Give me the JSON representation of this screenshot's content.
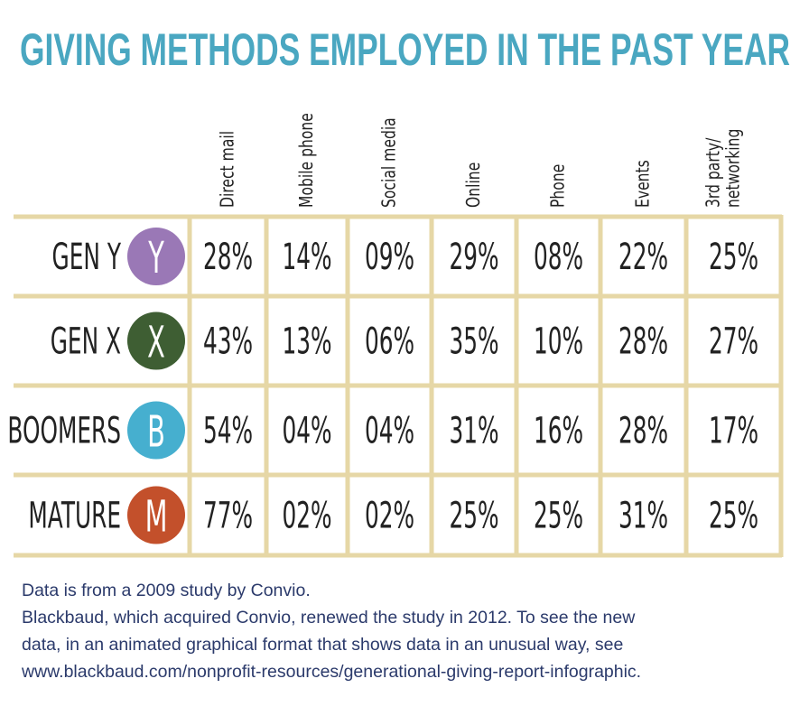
{
  "header": {
    "title": "GIVING METHODS EMPLOYED IN THE PAST YEAR"
  },
  "table": {
    "columns": [
      [
        "Direct  mail"
      ],
      [
        "Mobile phone"
      ],
      [
        "Social media"
      ],
      [
        "Online"
      ],
      [
        "Phone"
      ],
      [
        "Events"
      ],
      [
        "3rd party/",
        "networking"
      ]
    ],
    "rows": [
      {
        "label": "GEN Y",
        "badge": "Y",
        "badge_color": "#9a78b6",
        "cells": [
          "28%",
          "14%",
          "09%",
          "29%",
          "08%",
          "22%",
          "25%"
        ]
      },
      {
        "label": "GEN X",
        "badge": "X",
        "badge_color": "#3e5e33",
        "cells": [
          "43%",
          "13%",
          "06%",
          "35%",
          "10%",
          "28%",
          "27%"
        ]
      },
      {
        "label": "BOOMERS",
        "badge": "B",
        "badge_color": "#46afcf",
        "cells": [
          "54%",
          "04%",
          "04%",
          "31%",
          "16%",
          "28%",
          "17%"
        ]
      },
      {
        "label": "MATURE",
        "badge": "M",
        "badge_color": "#c3502b",
        "cells": [
          "77%",
          "02%",
          "02%",
          "25%",
          "25%",
          "31%",
          "25%"
        ]
      }
    ]
  },
  "footer": {
    "lines": [
      "Data is from a 2009 study by Convio.",
      "Blackbaud, which acquired Convio, renewed the study in 2012. To see the new",
      "data, in an animated graphical format that shows data in an unusual way, see",
      "www.blackbaud.com/nonprofit-resources/generational-giving-report-infographic."
    ]
  }
}
